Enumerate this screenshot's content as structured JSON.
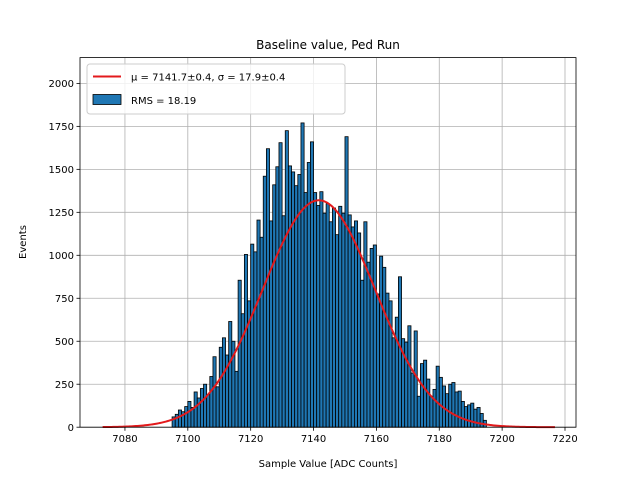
{
  "chart_data": {
    "type": "bar",
    "title": "Baseline value, Ped Run",
    "xlabel": "Sample Value [ADC Counts]",
    "ylabel": "Events",
    "xlim": [
      7065.7,
      7223.5
    ],
    "ylim": [
      0,
      2150
    ],
    "xticks": [
      7080,
      7100,
      7120,
      7140,
      7160,
      7180,
      7200,
      7220
    ],
    "yticks": [
      0,
      250,
      500,
      750,
      1000,
      1250,
      1500,
      1750,
      2000
    ],
    "grid": true,
    "legend_position": "top-left",
    "histogram": {
      "name": "RMS = 18.19",
      "color": "#1f77b4",
      "edge_color": "#000000",
      "bin_start": 7095,
      "bin_width": 1,
      "counts": [
        60,
        75,
        100,
        90,
        120,
        150,
        115,
        205,
        170,
        225,
        250,
        190,
        295,
        410,
        235,
        465,
        520,
        420,
        615,
        500,
        325,
        855,
        660,
        1005,
        735,
        1065,
        1020,
        1205,
        1105,
        1460,
        1620,
        1200,
        1410,
        1515,
        1655,
        1230,
        1725,
        1520,
        1485,
        1405,
        1470,
        1770,
        1365,
        1540,
        1660,
        1365,
        1290,
        1370,
        1245,
        1300,
        1195,
        1275,
        1120,
        1285,
        1245,
        1690,
        1235,
        1165,
        1200,
        1130,
        855,
        1195,
        960,
        1040,
        1060,
        775,
        995,
        930,
        780,
        735,
        520,
        640,
        875,
        515,
        495,
        590,
        315,
        560,
        180,
        370,
        390,
        280,
        180,
        220,
        355,
        290,
        240,
        195,
        250,
        260,
        205,
        210,
        150,
        120,
        130,
        140,
        105,
        115,
        80,
        40
      ]
    },
    "series": [
      {
        "name": "μ = 7141.7±0.4, σ = 17.9±0.4",
        "type": "gaussian",
        "color": "#e31a1c",
        "mu": 7141.7,
        "sigma": 17.9,
        "amplitude": 1320,
        "x_range": [
          7072.9,
          7216.8
        ]
      }
    ]
  }
}
